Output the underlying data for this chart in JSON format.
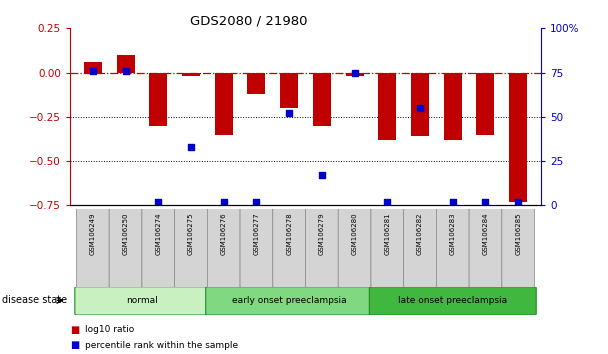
{
  "title": "GDS2080 / 21980",
  "samples": [
    "GSM106249",
    "GSM106250",
    "GSM106274",
    "GSM106275",
    "GSM106276",
    "GSM106277",
    "GSM106278",
    "GSM106279",
    "GSM106280",
    "GSM106281",
    "GSM106282",
    "GSM106283",
    "GSM106284",
    "GSM106285"
  ],
  "log10_ratio": [
    0.06,
    0.1,
    -0.3,
    -0.02,
    -0.35,
    -0.12,
    -0.2,
    -0.3,
    -0.02,
    -0.38,
    -0.36,
    -0.38,
    -0.35,
    -0.73
  ],
  "percentile_rank": [
    76,
    76,
    2,
    33,
    2,
    2,
    52,
    17,
    75,
    2,
    55,
    2,
    2,
    2
  ],
  "bar_color": "#c00000",
  "dot_color": "#0000cc",
  "ylim_left": [
    -0.75,
    0.25
  ],
  "ylim_right": [
    0,
    100
  ],
  "yticks_left": [
    -0.75,
    -0.5,
    -0.25,
    0.0,
    0.25
  ],
  "yticks_right": [
    0,
    25,
    50,
    75,
    100
  ],
  "dotted_lines": [
    -0.25,
    -0.5
  ],
  "disease_groups": [
    {
      "label": "normal",
      "start": 0,
      "end": 4,
      "color": "#c8f0c0"
    },
    {
      "label": "early onset preeclampsia",
      "start": 4,
      "end": 9,
      "color": "#80d880"
    },
    {
      "label": "late onset preeclampsia",
      "start": 9,
      "end": 14,
      "color": "#40b840"
    }
  ],
  "legend_items": [
    {
      "label": "log10 ratio",
      "color": "#c00000"
    },
    {
      "label": "percentile rank within the sample",
      "color": "#0000cc"
    }
  ],
  "disease_label": "disease state",
  "bar_width": 0.55
}
